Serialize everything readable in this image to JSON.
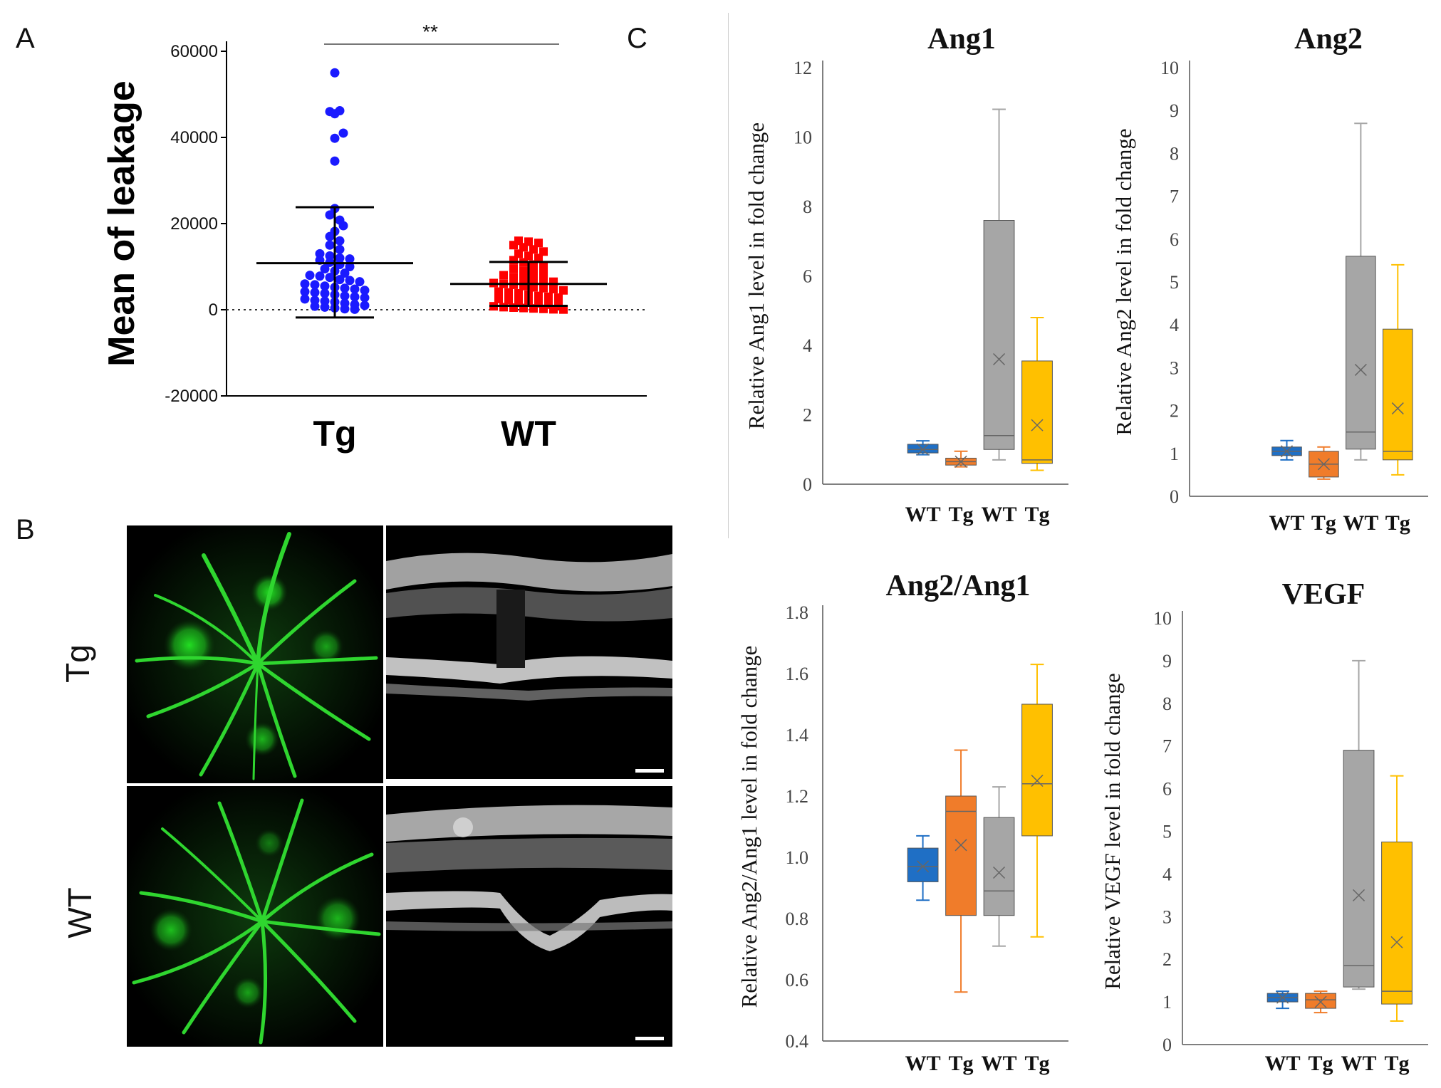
{
  "panels": {
    "A": {
      "letter": "A"
    },
    "B": {
      "letter": "B",
      "row_labels": [
        "Tg",
        "WT"
      ]
    },
    "C": {
      "letter": "C"
    }
  },
  "colors": {
    "tg_points": "#1a1aff",
    "wt_points": "#ff0000",
    "wt_box_1": "#1f6fc5",
    "tg_box_1": "#f07c2a",
    "wt_box_2": "#a6a6a6",
    "tg_box_2": "#ffc000",
    "fluorescein": "#22cc22"
  },
  "chart_data": [
    {
      "id": "A",
      "type": "scatter",
      "ylabel": "Mean of leakage",
      "categories": [
        "Tg",
        "WT"
      ],
      "ylim": [
        -20000,
        60000
      ],
      "yticks": [
        "-20000",
        "0",
        "20000",
        "40000",
        "60000"
      ],
      "significance": "**",
      "zero_line": "dotted",
      "series": [
        {
          "name": "Tg",
          "mean": 10800,
          "sd_low": -1800,
          "sd_high": 23800,
          "values": [
            55000,
            46000,
            45500,
            46200,
            39800,
            41000,
            34500,
            23500,
            22000,
            20800,
            19500,
            18200,
            17000,
            16000,
            15000,
            14000,
            13000,
            12500,
            12000,
            11800,
            11500,
            11000,
            10500,
            10000,
            9500,
            9000,
            8500,
            8000,
            7800,
            7500,
            7000,
            6800,
            6500,
            6000,
            5800,
            5500,
            5200,
            5000,
            4800,
            4500,
            4200,
            4000,
            3800,
            3500,
            3200,
            3000,
            2800,
            2500,
            2200,
            2000,
            1800,
            1500,
            1200,
            1000,
            800,
            600,
            400,
            200,
            100
          ]
        },
        {
          "name": "WT",
          "mean": 6000,
          "sd_low": 900,
          "sd_high": 11100,
          "values": [
            16000,
            15800,
            15500,
            15000,
            14500,
            14000,
            13500,
            13000,
            12500,
            12000,
            11500,
            11000,
            10500,
            10000,
            9500,
            9000,
            8800,
            8500,
            8000,
            7500,
            7200,
            7000,
            6800,
            6500,
            6200,
            6000,
            5800,
            5500,
            5200,
            5000,
            4800,
            4500,
            4200,
            4000,
            3800,
            3500,
            3200,
            3000,
            2800,
            2500,
            2200,
            2000,
            1800,
            1500,
            1200,
            1000,
            800,
            600,
            500,
            400,
            300,
            200,
            100,
            50
          ]
        }
      ]
    },
    {
      "id": "C-Ang1",
      "type": "box",
      "title": "Ang1",
      "ylabel": "Relative Ang1 level in fold change",
      "categories": [
        "WT",
        "Tg",
        "WT",
        "Tg"
      ],
      "ylim": [
        0,
        12
      ],
      "yticks": [
        "0",
        "2",
        "4",
        "6",
        "8",
        "10",
        "12"
      ],
      "boxes": [
        {
          "min": 0.85,
          "q1": 0.9,
          "median": 1.0,
          "q3": 1.15,
          "max": 1.25,
          "mean": 1.0
        },
        {
          "min": 0.5,
          "q1": 0.55,
          "median": 0.65,
          "q3": 0.75,
          "max": 0.95,
          "mean": 0.65
        },
        {
          "min": 0.7,
          "q1": 1.0,
          "median": 1.4,
          "q3": 7.6,
          "max": 10.8,
          "mean": 3.6
        },
        {
          "min": 0.4,
          "q1": 0.6,
          "median": 0.7,
          "q3": 3.55,
          "max": 4.8,
          "mean": 1.7
        }
      ]
    },
    {
      "id": "C-Ang2",
      "type": "box",
      "title": "Ang2",
      "ylabel": "Relative Ang2 level in fold change",
      "categories": [
        "WT",
        "Tg",
        "WT",
        "Tg"
      ],
      "ylim": [
        0,
        10
      ],
      "yticks": [
        "0",
        "1",
        "2",
        "3",
        "4",
        "5",
        "6",
        "7",
        "8",
        "9",
        "10"
      ],
      "boxes": [
        {
          "min": 0.85,
          "q1": 0.95,
          "median": 1.05,
          "q3": 1.15,
          "max": 1.3,
          "mean": 1.05
        },
        {
          "min": 0.4,
          "q1": 0.45,
          "median": 0.75,
          "q3": 1.05,
          "max": 1.15,
          "mean": 0.75
        },
        {
          "min": 0.85,
          "q1": 1.1,
          "median": 1.5,
          "q3": 5.6,
          "max": 8.7,
          "mean": 2.95
        },
        {
          "min": 0.5,
          "q1": 0.85,
          "median": 1.05,
          "q3": 3.9,
          "max": 5.4,
          "mean": 2.05
        }
      ]
    },
    {
      "id": "C-Ang2Ang1",
      "type": "box",
      "title": "Ang2/Ang1",
      "ylabel": "Relative Ang2/Ang1 level in fold change",
      "categories": [
        "WT",
        "Tg",
        "WT",
        "Tg"
      ],
      "ylim": [
        0.4,
        1.8
      ],
      "yticks": [
        "0.4",
        "0.6",
        "0.8",
        "1.0",
        "1.2",
        "1.4",
        "1.6",
        "1.8"
      ],
      "boxes": [
        {
          "min": 0.86,
          "q1": 0.92,
          "median": 0.97,
          "q3": 1.03,
          "max": 1.07,
          "mean": 0.97
        },
        {
          "min": 0.56,
          "q1": 0.81,
          "median": 1.15,
          "q3": 1.2,
          "max": 1.35,
          "mean": 1.04
        },
        {
          "min": 0.71,
          "q1": 0.81,
          "median": 0.89,
          "q3": 1.13,
          "max": 1.23,
          "mean": 0.95
        },
        {
          "min": 0.74,
          "q1": 1.07,
          "median": 1.24,
          "q3": 1.5,
          "max": 1.63,
          "mean": 1.25
        }
      ]
    },
    {
      "id": "C-VEGF",
      "type": "box",
      "title": "VEGF",
      "ylabel": "Relative VEGF level in fold change",
      "categories": [
        "WT",
        "Tg",
        "WT",
        "Tg"
      ],
      "ylim": [
        0,
        10
      ],
      "yticks": [
        "0",
        "1",
        "2",
        "3",
        "4",
        "5",
        "6",
        "7",
        "8",
        "9",
        "10"
      ],
      "boxes": [
        {
          "min": 0.85,
          "q1": 1.0,
          "median": 1.1,
          "q3": 1.2,
          "max": 1.25,
          "mean": 1.1
        },
        {
          "min": 0.75,
          "q1": 0.85,
          "median": 1.05,
          "q3": 1.2,
          "max": 1.25,
          "mean": 1.0
        },
        {
          "min": 1.3,
          "q1": 1.35,
          "median": 1.85,
          "q3": 6.9,
          "max": 9.0,
          "mean": 3.5
        },
        {
          "min": 0.55,
          "q1": 0.95,
          "median": 1.25,
          "q3": 4.75,
          "max": 6.3,
          "mean": 2.4
        }
      ]
    }
  ]
}
